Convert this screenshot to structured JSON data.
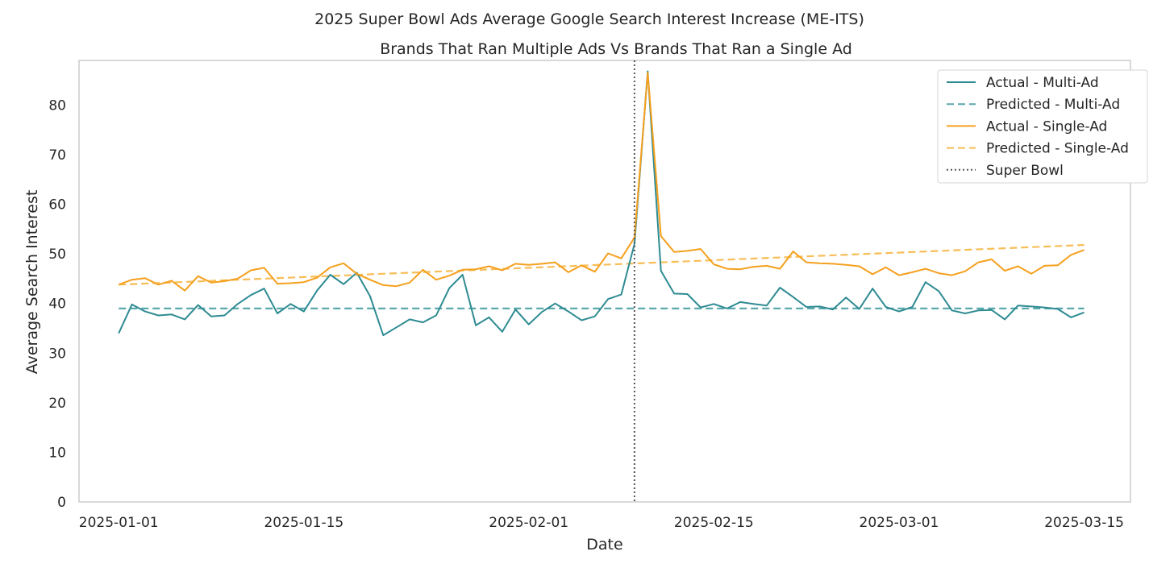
{
  "chart_data": {
    "type": "line",
    "title": "2025 Super Bowl Ads Average Google Search Interest Increase (ME-ITS)",
    "subtitle": "Brands That Ran Multiple Ads Vs Brands That Ran a Single Ad",
    "xlabel": "Date",
    "ylabel": "Average Search Interest",
    "x_start": "2025-01-01",
    "x_end": "2025-03-15",
    "xlim_days": [
      -3,
      76.5
    ],
    "ylim": [
      0,
      89
    ],
    "yticks": [
      0,
      10,
      20,
      30,
      40,
      50,
      60,
      70,
      80
    ],
    "xticks": [
      {
        "label": "2025-01-01",
        "day": 0
      },
      {
        "label": "2025-01-15",
        "day": 14
      },
      {
        "label": "2025-02-01",
        "day": 31
      },
      {
        "label": "2025-02-15",
        "day": 45
      },
      {
        "label": "2025-03-01",
        "day": 59
      },
      {
        "label": "2025-03-15",
        "day": 73
      }
    ],
    "grid": false,
    "legend_position": "top-right",
    "super_bowl": {
      "label": "Super Bowl",
      "day": 39,
      "date": "2025-02-09"
    },
    "series": [
      {
        "name": "Actual - Multi-Ad",
        "kind": "actual",
        "color": "#2e8b92",
        "values": [
          34.0,
          39.8,
          38.4,
          37.6,
          37.8,
          36.8,
          39.7,
          37.4,
          37.6,
          39.9,
          41.7,
          43.0,
          38.0,
          39.9,
          38.4,
          42.6,
          45.8,
          43.9,
          46.2,
          41.5,
          33.6,
          35.2,
          36.8,
          36.2,
          37.6,
          43.1,
          45.8,
          35.6,
          37.2,
          34.3,
          38.8,
          35.8,
          38.3,
          40.0,
          38.4,
          36.6,
          37.4,
          40.9,
          41.8,
          52.0,
          86.8,
          46.6,
          42.0,
          41.9,
          39.2,
          39.9,
          39.0,
          40.3,
          39.9,
          39.6,
          43.2,
          41.3,
          39.3,
          39.4,
          38.8,
          41.2,
          38.9,
          43.0,
          39.3,
          38.4,
          39.3,
          44.3,
          42.5,
          38.6,
          38.0,
          38.6,
          38.7,
          36.8,
          39.6,
          39.4,
          39.2,
          38.9,
          37.2,
          38.2
        ]
      },
      {
        "name": "Predicted - Multi-Ad",
        "kind": "predicted",
        "color": "#5ba8ad",
        "values_start": 39.0,
        "values_end": 39.0
      },
      {
        "name": "Actual - Single-Ad",
        "kind": "actual",
        "color": "#f5a01e",
        "values": [
          43.8,
          44.8,
          45.1,
          43.8,
          44.6,
          42.6,
          45.5,
          44.2,
          44.5,
          45.0,
          46.7,
          47.2,
          44.0,
          44.1,
          44.3,
          45.2,
          47.3,
          48.1,
          46.0,
          44.8,
          43.7,
          43.5,
          44.2,
          46.8,
          44.8,
          45.6,
          46.8,
          46.9,
          47.5,
          46.7,
          48.0,
          47.8,
          48.0,
          48.3,
          46.3,
          47.7,
          46.4,
          50.1,
          49.1,
          53.3,
          86.5,
          53.6,
          50.4,
          50.6,
          51.0,
          47.9,
          47.0,
          46.9,
          47.4,
          47.6,
          47.0,
          50.5,
          48.3,
          48.1,
          48.0,
          47.8,
          47.5,
          45.9,
          47.3,
          45.7,
          46.3,
          47.0,
          46.1,
          45.7,
          46.5,
          48.3,
          48.9,
          46.6,
          47.5,
          46.0,
          47.6,
          47.7,
          49.8,
          50.8
        ]
      },
      {
        "name": "Predicted - Single-Ad",
        "kind": "predicted",
        "color": "#f8bd56",
        "values_start": 43.8,
        "values_end": 51.8
      }
    ]
  }
}
